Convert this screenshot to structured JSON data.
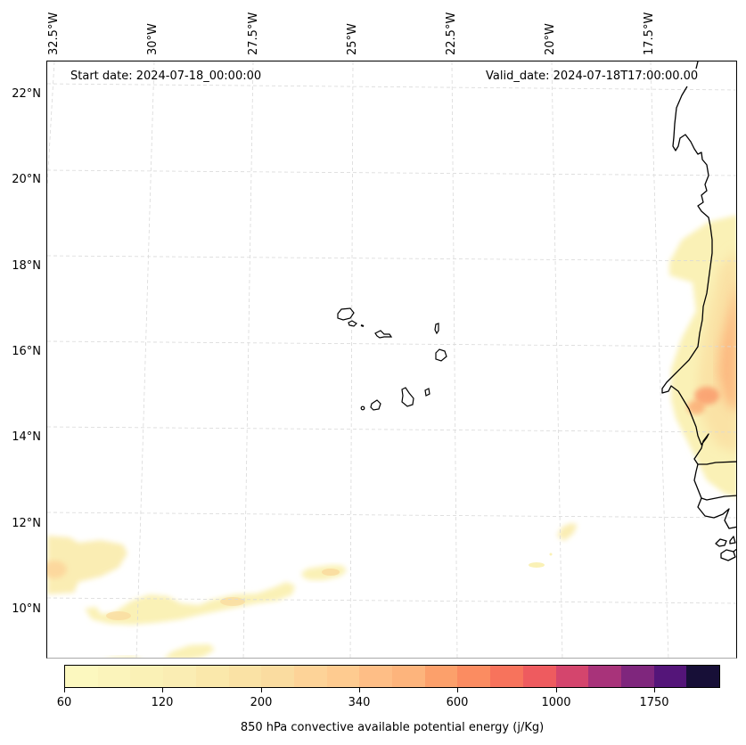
{
  "map": {
    "title_left": "Start date: 2024-07-18_00:00:00",
    "title_right": "Valid_date: 2024-07-18T17:00:00.00",
    "lon_ticks": [
      "32.5°W",
      "30°W",
      "27.5°W",
      "25°W",
      "22.5°W",
      "20°W",
      "17.5°W"
    ],
    "lat_ticks": [
      "22°N",
      "20°N",
      "18°N",
      "16°N",
      "14°N",
      "12°N",
      "10°N"
    ],
    "gridline_color": "#d9d9d9",
    "coastline_color": "#000000",
    "features": [
      "Cape Verde islands",
      "West African coastline (Mauritania, Senegal, Gambia, Guinea-Bissau)"
    ]
  },
  "colorbar": {
    "label": "850 hPa convective available potential energy (j/Kg)",
    "tick_labels": [
      "60",
      "120",
      "200",
      "340",
      "600",
      "1000",
      "1750"
    ],
    "segment_colors": [
      "#fcf8bf",
      "#fbf4bb",
      "#faf1b6",
      "#faedb3",
      "#fae8ab",
      "#fae2a5",
      "#fadca0",
      "#fdd398",
      "#fecb90",
      "#febe86",
      "#fdb47c",
      "#fca06b",
      "#fb8c61",
      "#f7735c",
      "#ee5b5f",
      "#d4456d",
      "#a8337a",
      "#7f267d",
      "#541579",
      "#170f37"
    ]
  },
  "chart_data": {
    "type": "heatmap",
    "title": "850 hPa convective available potential energy (j/Kg)",
    "subtitle_left": "Start date: 2024-07-18_00:00:00",
    "subtitle_right": "Valid_date: 2024-07-18T17:00:00.00",
    "x_ticks": [
      "32.5°W",
      "30°W",
      "27.5°W",
      "25°W",
      "22.5°W",
      "20°W",
      "17.5°W"
    ],
    "y_ticks": [
      "22°N",
      "20°N",
      "18°N",
      "16°N",
      "14°N",
      "12°N",
      "10°N"
    ],
    "xlim_deg": [
      -32.5,
      -16.5
    ],
    "ylim_deg": [
      9,
      22.5
    ],
    "colorbar_ticks": [
      60,
      120,
      200,
      340,
      600,
      1000,
      1750
    ],
    "grid": true,
    "regions": [
      {
        "name": "Senegal/Mauritania coast CAPE",
        "lat_range": [
          12.5,
          18.8
        ],
        "lon_range": [
          -17.6,
          -16.5
        ],
        "approx_max": 600
      },
      {
        "name": "Western ITCZ band",
        "lat_range": [
          10.4,
          11.7
        ],
        "lon_range": [
          -32.5,
          -30.8
        ],
        "approx_max": 200
      },
      {
        "name": "Central band",
        "lat_range": [
          9.8,
          10.9
        ],
        "lon_range": [
          -31.5,
          -24.8
        ],
        "approx_max": 200
      },
      {
        "name": "Band near 11N 20W",
        "lat_range": [
          10.9,
          12.0
        ],
        "lon_range": [
          -20.8,
          -20.1
        ],
        "approx_max": 120
      },
      {
        "name": "Southern patch",
        "lat_range": [
          9.0,
          9.4
        ],
        "lon_range": [
          -32.0,
          -28.8
        ],
        "approx_max": 120
      }
    ]
  }
}
